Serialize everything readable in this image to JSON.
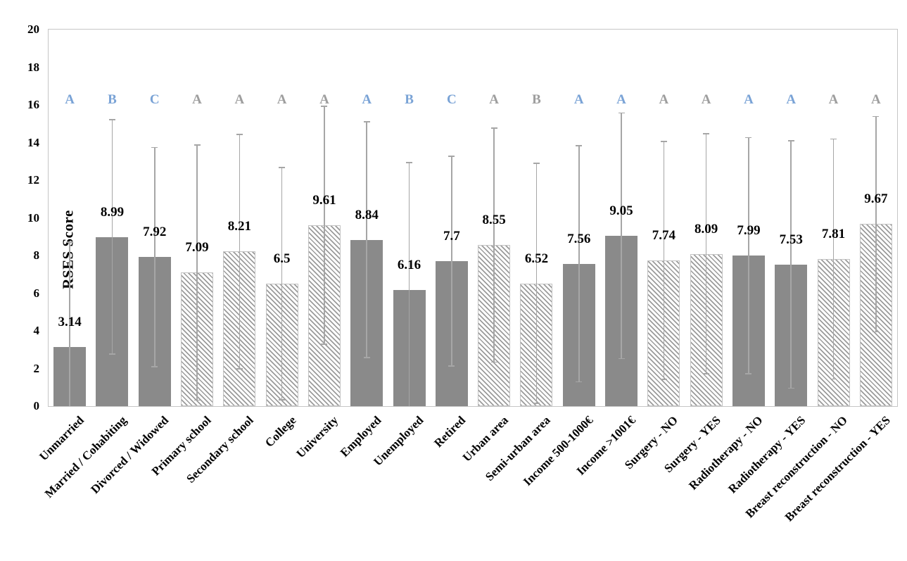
{
  "chart_data": {
    "type": "bar",
    "title": "",
    "xlabel": "",
    "ylabel": "RSES Score",
    "ylim": [
      0,
      20
    ],
    "yticks": [
      0,
      2,
      4,
      6,
      8,
      10,
      12,
      14,
      16,
      18,
      20
    ],
    "grid": false,
    "legend": "none",
    "categories": [
      "Unmarried",
      "Married / Cohabiting",
      "Divorced / Widowed",
      "Primary school",
      "Secondary school",
      "College",
      "University",
      "Employed",
      "Unemployed",
      "Retired",
      "Urban area",
      "Semi-urban area",
      "Income 500-1000€",
      "Income >1001€",
      "Surgery - NO",
      "Surgery - YES",
      "Radiotherapy - NO",
      "Radiotherapy - YES",
      "Breast reconstruction - NO",
      "Breast reconstruction - YES"
    ],
    "values": [
      3.14,
      8.99,
      7.92,
      7.09,
      8.21,
      6.5,
      9.61,
      8.84,
      6.16,
      7.7,
      8.55,
      6.52,
      7.56,
      9.05,
      7.74,
      8.09,
      7.99,
      7.53,
      7.81,
      9.67
    ],
    "value_labels": [
      "3.14",
      "8.99",
      "7.92",
      "7.09",
      "8.21",
      "6.5",
      "9.61",
      "8.84",
      "6.16",
      "7.7",
      "8.55",
      "6.52",
      "7.56",
      "9.05",
      "7.74",
      "8.09",
      "7.99",
      "7.53",
      "7.81",
      "9.67"
    ],
    "error_bars": [
      5.6,
      6.25,
      5.85,
      6.8,
      6.25,
      6.2,
      6.35,
      6.3,
      6.8,
      5.6,
      6.25,
      6.4,
      6.3,
      6.55,
      6.35,
      6.4,
      6.3,
      6.6,
      6.4,
      5.75
    ],
    "bar_styles": [
      "solid",
      "solid",
      "solid",
      "hatched",
      "hatched",
      "hatched",
      "hatched",
      "solid",
      "solid",
      "solid",
      "hatched",
      "hatched",
      "solid",
      "solid",
      "hatched",
      "hatched",
      "solid",
      "solid",
      "hatched",
      "hatched"
    ],
    "sig_letters": [
      "A",
      "B",
      "C",
      "A",
      "A",
      "A",
      "A",
      "A",
      "B",
      "C",
      "A",
      "B",
      "A",
      "A",
      "A",
      "A",
      "A",
      "A",
      "A",
      "A"
    ],
    "sig_letter_colors": [
      "blue",
      "blue",
      "blue",
      "gray",
      "gray",
      "gray",
      "gray",
      "blue",
      "blue",
      "blue",
      "gray",
      "gray",
      "blue",
      "blue",
      "gray",
      "gray",
      "blue",
      "blue",
      "gray",
      "gray"
    ],
    "colors": {
      "solid_bar": "#8a8a8a",
      "hatch_stripe": "#9b9b9b",
      "error_bar": "#a6a6a6",
      "letter_blue": "#7aa3d6",
      "letter_gray": "#9e9e9e",
      "plot_border": "#c6c6c6",
      "text": "#000000"
    }
  }
}
